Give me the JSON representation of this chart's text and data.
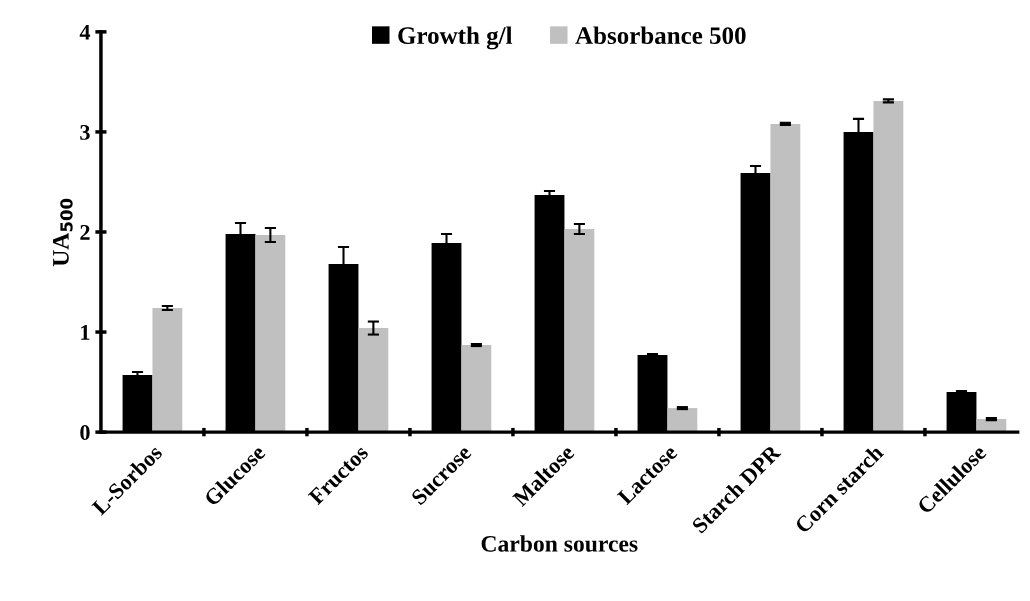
{
  "chart_data": {
    "type": "bar",
    "xlabel": "Carbon sources",
    "ylabel": "UA$_{500}$",
    "categories": [
      "L-Sorbos",
      "Glucose",
      "Fructos",
      "Sucrose",
      "Maltose",
      "Lactose",
      "Starch DPR",
      "Corn starch",
      "Cellulose"
    ],
    "series": [
      {
        "name": "Growth g/l",
        "color": "#000000",
        "values": [
          0.57,
          1.98,
          1.68,
          1.89,
          2.37,
          0.77,
          2.59,
          3.0,
          0.4
        ],
        "errors": [
          0.03,
          0.11,
          0.17,
          0.09,
          0.04,
          0.01,
          0.07,
          0.13,
          0.01
        ]
      },
      {
        "name": "Absorbance 500",
        "color": "#c0c0c0",
        "values": [
          1.24,
          1.97,
          1.04,
          0.87,
          2.03,
          0.24,
          3.08,
          3.31,
          0.13
        ],
        "errors": [
          0.02,
          0.07,
          0.065,
          0.01,
          0.05,
          0.01,
          0.01,
          0.015,
          0.01
        ]
      }
    ],
    "ylim": [
      0,
      4
    ],
    "yticks": [
      0,
      1,
      2,
      3,
      4
    ],
    "grid": false,
    "legend": "top"
  }
}
